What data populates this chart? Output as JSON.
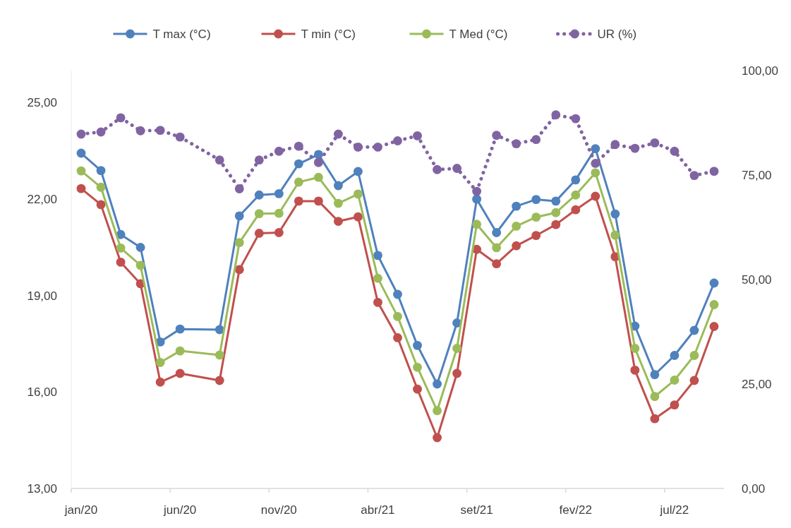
{
  "chart_data": {
    "type": "line",
    "categories": [
      "jan/20",
      null,
      null,
      null,
      null,
      "jun/20",
      null,
      null,
      null,
      null,
      "nov/20",
      null,
      null,
      null,
      null,
      "abr/21",
      null,
      null,
      null,
      null,
      "set/21",
      null,
      null,
      null,
      null,
      "fev/22",
      null,
      null,
      null,
      null,
      "jul/22",
      null,
      null
    ],
    "series": [
      {
        "name": "T max (°C)",
        "color": "#4f81bd",
        "values": [
          23.43,
          22.89,
          20.9,
          20.5,
          17.56,
          17.96,
          null,
          17.94,
          21.48,
          22.13,
          22.17,
          23.1,
          23.39,
          22.42,
          22.86,
          20.25,
          19.04,
          17.45,
          16.25,
          18.15,
          22.0,
          20.96,
          21.78,
          21.99,
          21.94,
          22.6,
          23.57,
          21.54,
          18.05,
          16.54,
          17.14,
          17.92,
          19.39
        ]
      },
      {
        "name": "T min (°C)",
        "color": "#c0504d",
        "values": [
          22.33,
          21.83,
          20.04,
          19.37,
          16.31,
          16.58,
          null,
          16.36,
          19.81,
          20.94,
          20.96,
          21.94,
          21.94,
          21.31,
          21.45,
          18.79,
          17.69,
          16.09,
          14.58,
          16.58,
          20.44,
          19.99,
          20.55,
          20.87,
          21.21,
          21.67,
          22.09,
          20.21,
          16.68,
          15.17,
          15.6,
          16.36,
          18.04
        ]
      },
      {
        "name": "T Med (°C)",
        "color": "#9bbb59",
        "values": [
          22.88,
          22.37,
          20.48,
          19.94,
          16.92,
          17.28,
          null,
          17.15,
          20.65,
          21.55,
          21.56,
          22.53,
          22.68,
          21.87,
          22.16,
          19.54,
          18.35,
          16.77,
          15.42,
          17.36,
          21.22,
          20.49,
          21.16,
          21.44,
          21.58,
          22.13,
          22.82,
          20.88,
          17.36,
          15.86,
          16.37,
          17.14,
          18.72
        ]
      },
      {
        "name": "UR (%)",
        "color": "#8064a2",
        "axis": "y2",
        "line_style": "dotted",
        "values": [
          84.8,
          85.3,
          88.7,
          85.6,
          85.7,
          84.1,
          null,
          78.6,
          71.7,
          78.6,
          80.7,
          81.9,
          78.0,
          84.8,
          81.7,
          81.7,
          83.2,
          84.4,
          76.3,
          76.6,
          71.1,
          84.5,
          82.5,
          83.5,
          89.4,
          88.5,
          77.8,
          82.3,
          81.4,
          82.7,
          80.7,
          74.9,
          75.9
        ]
      }
    ],
    "ylim": [
      13,
      26
    ],
    "yticks": [
      {
        "value": 13,
        "label": "13,00"
      },
      {
        "value": 16,
        "label": "16,00"
      },
      {
        "value": 19,
        "label": "19,00"
      },
      {
        "value": 22,
        "label": "22,00"
      },
      {
        "value": 25,
        "label": "25,00"
      }
    ],
    "y2lim": [
      0,
      100
    ],
    "y2ticks": [
      {
        "value": 0,
        "label": "0,00"
      },
      {
        "value": 25,
        "label": "25,00"
      },
      {
        "value": 50,
        "label": "50,00"
      },
      {
        "value": 75,
        "label": "75,00"
      },
      {
        "value": 100,
        "label": "100,00"
      }
    ],
    "marker": "circle",
    "line_style": "solid",
    "legend": "top",
    "grid": false
  }
}
